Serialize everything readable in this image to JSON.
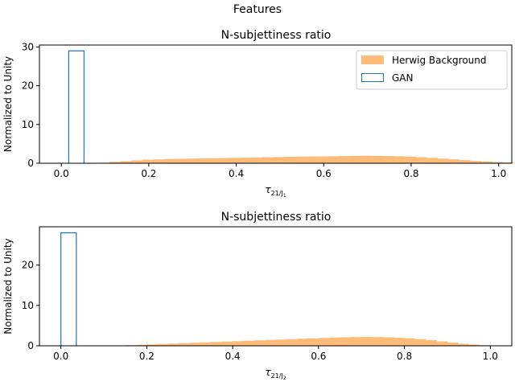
{
  "suptitle": "Features",
  "colors": {
    "background_fill": "#ffbb78",
    "gan_edge": "#1f77b4",
    "axis": "#000000"
  },
  "chart_data": [
    {
      "type": "bar",
      "title": "N-subjettiness ratio",
      "xlabel_main": "τ",
      "xlabel_sub": "21/J",
      "xlabel_subsub": "1",
      "ylabel": "Normalized to Unity",
      "xlim": [
        -0.05,
        1.03
      ],
      "ylim": [
        0,
        30.5
      ],
      "xticks": [
        0.0,
        0.2,
        0.4,
        0.6,
        0.8,
        1.0
      ],
      "xtick_labels": [
        "0.0",
        "0.2",
        "0.4",
        "0.6",
        "0.8",
        "1.0"
      ],
      "yticks": [
        0,
        10,
        20,
        30
      ],
      "ytick_labels": [
        "0",
        "10",
        "20",
        "30"
      ],
      "legend": {
        "position": "top-right",
        "entries": [
          "Herwig Background",
          "GAN"
        ]
      },
      "series": [
        {
          "name": "Herwig Background",
          "style": "filled",
          "bin_width": 0.025,
          "x_start": 0.085,
          "values": [
            0.15,
            0.35,
            0.55,
            0.75,
            0.9,
            1.0,
            1.1,
            1.15,
            1.2,
            1.25,
            1.3,
            1.35,
            1.4,
            1.45,
            1.5,
            1.55,
            1.6,
            1.65,
            1.7,
            1.75,
            1.75,
            1.8,
            1.85,
            1.9,
            1.95,
            1.9,
            1.85,
            1.8,
            1.7,
            1.55,
            1.4,
            1.2,
            1.0,
            0.8,
            0.6,
            0.45,
            0.3,
            0.2,
            0.1,
            0.05
          ]
        },
        {
          "name": "GAN",
          "style": "step",
          "bins": [
            [
              0.017,
              0.052,
              29.0
            ]
          ]
        }
      ]
    },
    {
      "type": "bar",
      "title": "N-subjettiness ratio",
      "xlabel_main": "τ",
      "xlabel_sub": "21/J",
      "xlabel_subsub": "2",
      "ylabel": "Normalized to Unity",
      "xlim": [
        -0.05,
        1.05
      ],
      "ylim": [
        0,
        29.5
      ],
      "xticks": [
        0.0,
        0.2,
        0.4,
        0.6,
        0.8,
        1.0
      ],
      "xtick_labels": [
        "0.0",
        "0.2",
        "0.4",
        "0.6",
        "0.8",
        "1.0"
      ],
      "yticks": [
        0,
        10,
        20
      ],
      "ytick_labels": [
        "0",
        "10",
        "20"
      ],
      "series": [
        {
          "name": "Herwig Background",
          "style": "filled",
          "bin_width": 0.025,
          "x_start": 0.1,
          "values": [
            0.05,
            0.1,
            0.15,
            0.25,
            0.35,
            0.45,
            0.55,
            0.65,
            0.75,
            0.85,
            0.95,
            1.05,
            1.15,
            1.25,
            1.35,
            1.45,
            1.55,
            1.65,
            1.75,
            1.85,
            1.95,
            2.05,
            2.1,
            2.15,
            2.2,
            2.15,
            2.1,
            2.0,
            1.85,
            1.65,
            1.4,
            1.1,
            0.8,
            0.5,
            0.3,
            0.15
          ]
        },
        {
          "name": "GAN",
          "style": "step",
          "bins": [
            [
              0.0,
              0.036,
              28.0
            ]
          ]
        }
      ]
    }
  ]
}
